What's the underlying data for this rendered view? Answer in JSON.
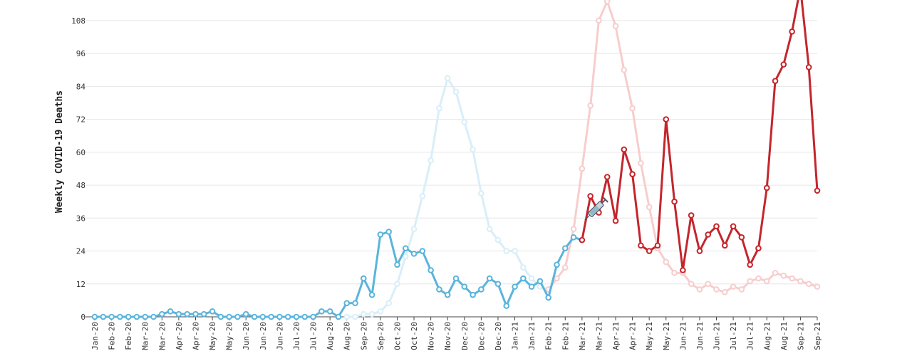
{
  "chart_data": {
    "type": "line",
    "y_label": "Weekly COVID-19 Deaths",
    "categories": [
      "Jan-20",
      null,
      "Feb-20",
      null,
      "Feb-20",
      null,
      "Mar-20",
      null,
      "Mar-20",
      null,
      "Apr-20",
      null,
      "Apr-20",
      null,
      "May-20",
      null,
      "May-20",
      null,
      "Jun-20",
      null,
      "Jun-20",
      null,
      "Jun-20",
      null,
      "Jul-20",
      null,
      "Jul-20",
      null,
      "Aug-20",
      null,
      "Aug-20",
      null,
      "Sep-20",
      null,
      "Sep-20",
      null,
      "Oct-20",
      null,
      "Oct-20",
      null,
      "Nov-20",
      null,
      "Nov-20",
      null,
      "Dec-20",
      null,
      "Dec-20",
      null,
      "Dec-20",
      null,
      "Jan-21",
      null,
      "Jan-21",
      null,
      "Feb-21",
      null,
      "Feb-21",
      null,
      "Mar-21",
      null,
      "Mar-21",
      null,
      "Apr-21",
      null,
      "Apr-21",
      null,
      "May-21",
      null,
      "May-21",
      null,
      "Jun-21",
      null,
      "Jun-21",
      null,
      "Jun-21",
      null,
      "Jul-21",
      null,
      "Jul-21",
      null,
      "Aug-21",
      null,
      "Aug-21",
      null,
      "Sep-21",
      null,
      "Sep-21"
    ],
    "series": [
      {
        "color": "#d9eef9",
        "values": [
          null,
          null,
          null,
          null,
          null,
          null,
          null,
          null,
          null,
          null,
          null,
          null,
          null,
          null,
          null,
          null,
          null,
          null,
          null,
          null,
          null,
          null,
          null,
          null,
          null,
          null,
          null,
          null,
          null,
          null,
          0,
          0,
          1,
          1,
          2,
          5,
          12,
          22,
          32,
          44,
          57,
          76,
          87,
          82,
          71,
          61,
          45,
          32,
          28,
          24,
          24,
          18,
          14,
          11,
          10,
          null,
          null,
          null,
          null,
          null,
          null,
          null,
          null,
          null,
          null,
          null,
          null,
          null,
          null,
          null,
          null,
          null,
          null,
          null,
          null,
          null,
          null,
          null,
          null,
          null,
          null,
          null,
          null,
          null,
          null,
          null,
          null
        ]
      },
      {
        "color": "#f7cdcd",
        "values": [
          null,
          null,
          null,
          null,
          null,
          null,
          null,
          null,
          null,
          null,
          null,
          null,
          null,
          null,
          null,
          null,
          null,
          null,
          null,
          null,
          null,
          null,
          null,
          null,
          null,
          null,
          null,
          null,
          null,
          null,
          null,
          null,
          null,
          null,
          null,
          null,
          null,
          null,
          null,
          null,
          null,
          null,
          null,
          null,
          null,
          null,
          null,
          null,
          null,
          null,
          null,
          null,
          null,
          null,
          10,
          14,
          18,
          32,
          54,
          77,
          108,
          115,
          106,
          90,
          76,
          56,
          40,
          25,
          20,
          16,
          16,
          12,
          10,
          12,
          10,
          9,
          11,
          10,
          13,
          14,
          13,
          16,
          15,
          14,
          13,
          12,
          11
        ]
      },
      {
        "color": "#5ab4dc",
        "values": [
          0,
          0,
          0,
          0,
          0,
          0,
          0,
          0,
          1,
          2,
          1,
          1,
          1,
          1,
          2,
          0,
          0,
          0,
          1,
          0,
          0,
          0,
          0,
          0,
          0,
          0,
          0,
          2,
          2,
          0,
          5,
          5,
          14,
          8,
          30,
          31,
          19,
          25,
          23,
          24,
          17,
          10,
          8,
          14,
          11,
          8,
          10,
          14,
          12,
          4,
          11,
          14,
          11,
          13,
          7,
          19,
          25,
          29,
          28,
          null,
          null,
          null,
          null,
          null,
          null,
          null,
          null,
          null,
          null,
          null,
          null,
          null,
          null,
          null,
          null,
          null,
          null,
          null,
          null,
          null,
          null,
          null,
          null,
          null,
          null,
          null,
          null
        ]
      },
      {
        "color": "#c3262c",
        "values": [
          null,
          null,
          null,
          null,
          null,
          null,
          null,
          null,
          null,
          null,
          null,
          null,
          null,
          null,
          null,
          null,
          null,
          null,
          null,
          null,
          null,
          null,
          null,
          null,
          null,
          null,
          null,
          null,
          null,
          null,
          null,
          null,
          null,
          null,
          null,
          null,
          null,
          null,
          null,
          null,
          null,
          null,
          null,
          null,
          null,
          null,
          null,
          null,
          null,
          null,
          null,
          null,
          null,
          null,
          null,
          null,
          null,
          null,
          28,
          44,
          38,
          51,
          35,
          61,
          52,
          26,
          24,
          26,
          72,
          42,
          17,
          37,
          24,
          30,
          33,
          26,
          33,
          29,
          19,
          25,
          47,
          86,
          92,
          104,
          120,
          91,
          46
        ]
      }
    ],
    "ylim": [
      0,
      115.5
    ],
    "yticks": [
      0,
      12,
      24,
      36,
      48,
      60,
      72,
      84,
      96,
      108
    ],
    "grid": true
  }
}
